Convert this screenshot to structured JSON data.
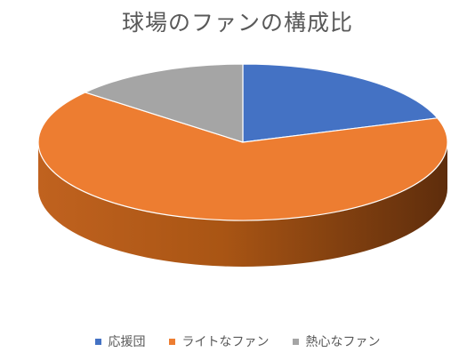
{
  "chart_data": {
    "type": "pie",
    "title": "球場のファンの構成比",
    "categories": [
      "応援団",
      "ライトなファン",
      "熱心なファン"
    ],
    "values": [
      20,
      66,
      14
    ],
    "colors": [
      "#4472C4",
      "#ED7D31",
      "#A5A5A5"
    ],
    "legend_position": "bottom",
    "style": "3d"
  }
}
